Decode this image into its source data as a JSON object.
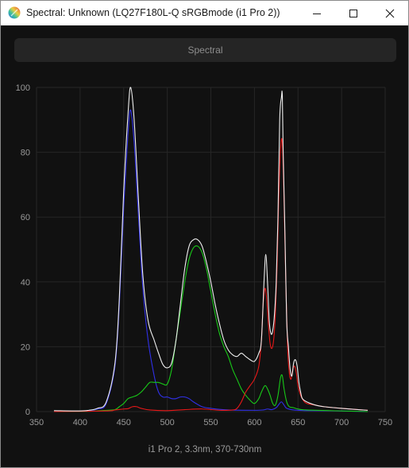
{
  "window": {
    "title": "Spectral: Unknown (LQ27F180L-Q sRGBmode (i1 Pro 2))",
    "icon": "rainbow-spectrum-icon",
    "controls": {
      "minimize": "minimize-icon",
      "maximize": "maximize-icon",
      "close": "close-icon"
    }
  },
  "toolbar": {
    "spectral_label": "Spectral"
  },
  "chart_data": {
    "type": "line",
    "title": "",
    "xlabel": "i1 Pro 2, 3.3nm, 370-730nm",
    "ylabel": "",
    "xlim": [
      350,
      750
    ],
    "ylim": [
      0,
      100
    ],
    "xticks": [
      350,
      400,
      450,
      500,
      550,
      600,
      650,
      700,
      750
    ],
    "yticks": [
      0,
      20,
      40,
      60,
      80,
      100
    ],
    "grid": true,
    "legend": "none",
    "series": [
      {
        "color": "#f0f0f0",
        "points": [
          [
            370,
            0.3
          ],
          [
            400,
            0.2
          ],
          [
            410,
            0.4
          ],
          [
            420,
            1
          ],
          [
            430,
            3
          ],
          [
            440,
            15
          ],
          [
            445,
            35
          ],
          [
            450,
            68
          ],
          [
            455,
            92
          ],
          [
            458,
            100
          ],
          [
            462,
            90
          ],
          [
            467,
            65
          ],
          [
            472,
            42
          ],
          [
            478,
            28
          ],
          [
            485,
            22
          ],
          [
            490,
            18
          ],
          [
            495,
            14.5
          ],
          [
            500,
            13.5
          ],
          [
            505,
            15
          ],
          [
            510,
            22
          ],
          [
            515,
            33
          ],
          [
            520,
            44
          ],
          [
            525,
            51
          ],
          [
            530,
            53
          ],
          [
            535,
            53
          ],
          [
            540,
            51
          ],
          [
            545,
            46
          ],
          [
            550,
            40
          ],
          [
            555,
            33
          ],
          [
            560,
            27
          ],
          [
            565,
            22
          ],
          [
            570,
            19
          ],
          [
            575,
            17.5
          ],
          [
            580,
            17
          ],
          [
            585,
            18
          ],
          [
            590,
            17
          ],
          [
            595,
            16
          ],
          [
            600,
            15.5
          ],
          [
            605,
            18
          ],
          [
            608,
            22
          ],
          [
            611,
            40
          ],
          [
            613,
            48.5
          ],
          [
            615,
            40
          ],
          [
            617,
            28
          ],
          [
            619,
            24
          ],
          [
            621,
            25
          ],
          [
            623,
            30
          ],
          [
            625,
            40
          ],
          [
            627,
            60
          ],
          [
            629,
            90
          ],
          [
            631,
            97
          ],
          [
            632,
            97.5
          ],
          [
            633,
            80
          ],
          [
            635,
            55
          ],
          [
            637,
            28
          ],
          [
            639,
            20
          ],
          [
            641,
            13
          ],
          [
            643,
            11
          ],
          [
            645,
            15
          ],
          [
            647,
            16
          ],
          [
            649,
            14
          ],
          [
            651,
            9
          ],
          [
            653,
            6
          ],
          [
            655,
            4
          ],
          [
            660,
            3
          ],
          [
            670,
            2
          ],
          [
            680,
            1.5
          ],
          [
            700,
            1
          ],
          [
            730,
            0.4
          ]
        ]
      },
      {
        "color": "#3030e8",
        "points": [
          [
            370,
            0
          ],
          [
            400,
            0.1
          ],
          [
            410,
            0.3
          ],
          [
            420,
            0.8
          ],
          [
            430,
            2.5
          ],
          [
            440,
            14
          ],
          [
            445,
            33
          ],
          [
            450,
            63
          ],
          [
            455,
            86
          ],
          [
            458,
            93
          ],
          [
            462,
            83
          ],
          [
            467,
            60
          ],
          [
            472,
            38
          ],
          [
            478,
            22
          ],
          [
            485,
            11
          ],
          [
            490,
            6
          ],
          [
            495,
            4.5
          ],
          [
            500,
            4.5
          ],
          [
            505,
            4
          ],
          [
            510,
            4
          ],
          [
            515,
            4.5
          ],
          [
            520,
            4.5
          ],
          [
            525,
            4
          ],
          [
            530,
            3
          ],
          [
            540,
            1.5
          ],
          [
            550,
            1
          ],
          [
            570,
            0.5
          ],
          [
            600,
            0.4
          ],
          [
            610,
            0.5
          ],
          [
            615,
            0.8
          ],
          [
            620,
            0.6
          ],
          [
            625,
            1.2
          ],
          [
            628,
            2.2
          ],
          [
            631,
            3
          ],
          [
            634,
            2
          ],
          [
            637,
            1
          ],
          [
            645,
            0.5
          ],
          [
            660,
            0.3
          ],
          [
            700,
            0.2
          ],
          [
            730,
            0
          ]
        ]
      },
      {
        "color": "#18c818",
        "points": [
          [
            370,
            0
          ],
          [
            410,
            0.1
          ],
          [
            430,
            0.4
          ],
          [
            440,
            0.6
          ],
          [
            445,
            1.5
          ],
          [
            450,
            2.5
          ],
          [
            455,
            4
          ],
          [
            460,
            4.5
          ],
          [
            465,
            5
          ],
          [
            470,
            6
          ],
          [
            475,
            7.5
          ],
          [
            480,
            9
          ],
          [
            485,
            9
          ],
          [
            490,
            9
          ],
          [
            495,
            8.5
          ],
          [
            500,
            8.5
          ],
          [
            505,
            13
          ],
          [
            510,
            22
          ],
          [
            515,
            31
          ],
          [
            520,
            40
          ],
          [
            525,
            47
          ],
          [
            530,
            50.5
          ],
          [
            535,
            51
          ],
          [
            540,
            49
          ],
          [
            545,
            44
          ],
          [
            550,
            37
          ],
          [
            555,
            30
          ],
          [
            560,
            24
          ],
          [
            565,
            20
          ],
          [
            570,
            17
          ],
          [
            575,
            13
          ],
          [
            580,
            10
          ],
          [
            585,
            7
          ],
          [
            590,
            5
          ],
          [
            595,
            3.5
          ],
          [
            600,
            2.5
          ],
          [
            605,
            4
          ],
          [
            608,
            6
          ],
          [
            612,
            8
          ],
          [
            615,
            7
          ],
          [
            618,
            5
          ],
          [
            621,
            2.5
          ],
          [
            624,
            2
          ],
          [
            627,
            5
          ],
          [
            630,
            10.5
          ],
          [
            632,
            11
          ],
          [
            634,
            7
          ],
          [
            637,
            3
          ],
          [
            640,
            1.5
          ],
          [
            645,
            1.2
          ],
          [
            650,
            0.8
          ],
          [
            660,
            0.5
          ],
          [
            700,
            0.2
          ],
          [
            730,
            0
          ]
        ]
      },
      {
        "color": "#e81818",
        "points": [
          [
            370,
            0
          ],
          [
            430,
            0.2
          ],
          [
            440,
            0.5
          ],
          [
            450,
            0.8
          ],
          [
            455,
            0.9
          ],
          [
            460,
            1.5
          ],
          [
            465,
            1.5
          ],
          [
            470,
            1
          ],
          [
            480,
            0.5
          ],
          [
            500,
            0.3
          ],
          [
            520,
            0.6
          ],
          [
            540,
            0.8
          ],
          [
            560,
            0.4
          ],
          [
            575,
            0.5
          ],
          [
            580,
            1
          ],
          [
            585,
            3
          ],
          [
            590,
            6
          ],
          [
            595,
            8
          ],
          [
            600,
            10
          ],
          [
            605,
            14
          ],
          [
            608,
            22
          ],
          [
            610,
            33
          ],
          [
            612,
            38
          ],
          [
            614,
            35
          ],
          [
            616,
            27
          ],
          [
            618,
            21
          ],
          [
            620,
            19.5
          ],
          [
            622,
            22
          ],
          [
            624,
            30
          ],
          [
            626,
            45
          ],
          [
            628,
            67
          ],
          [
            630,
            81
          ],
          [
            632,
            83
          ],
          [
            634,
            65
          ],
          [
            636,
            40
          ],
          [
            638,
            20
          ],
          [
            640,
            12
          ],
          [
            642,
            10
          ],
          [
            644,
            13
          ],
          [
            646,
            14
          ],
          [
            648,
            12
          ],
          [
            650,
            8
          ],
          [
            653,
            5
          ],
          [
            656,
            3.5
          ],
          [
            660,
            2.5
          ],
          [
            670,
            2
          ],
          [
            680,
            1.5
          ],
          [
            700,
            1
          ],
          [
            730,
            0.4
          ]
        ]
      }
    ]
  }
}
